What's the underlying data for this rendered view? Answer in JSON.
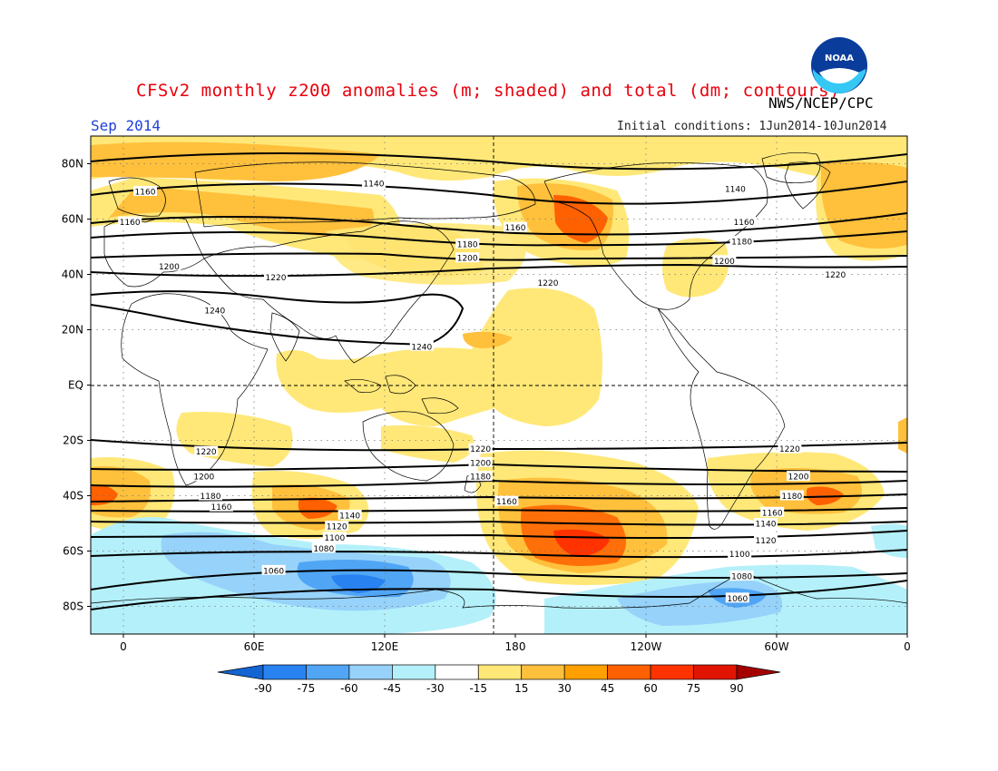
{
  "title": "CFSv2 monthly z200 anomalies (m; shaded) and total (dm; contours)",
  "agency": "NWS/NCEP/CPC",
  "logo_text": "NOAA",
  "month_label": "Sep 2014",
  "initial_conditions": "Initial conditions: 1Jun2014-10Jun2014",
  "colors": {
    "title": "#e8000b",
    "month": "#1f3fd9"
  },
  "lat_labels": [
    "80N",
    "60N",
    "40N",
    "20N",
    "EQ",
    "20S",
    "40S",
    "60S",
    "80S"
  ],
  "lat_values": [
    80,
    60,
    40,
    20,
    0,
    -20,
    -40,
    -60,
    -80
  ],
  "lon_labels": [
    "0",
    "60E",
    "120E",
    "180",
    "120W",
    "60W",
    "0"
  ],
  "lon_values": [
    0,
    60,
    120,
    180,
    240,
    300,
    360
  ],
  "colorbar": {
    "ticks": [
      "-90",
      "-75",
      "-60",
      "-45",
      "-30",
      "-15",
      "15",
      "30",
      "45",
      "60",
      "75",
      "90"
    ],
    "colors": [
      "#1464d2",
      "#2882f0",
      "#50a5f5",
      "#96d2fa",
      "#b4f0fa",
      "#ffffff",
      "#ffe878",
      "#ffc03c",
      "#ffa000",
      "#ff6000",
      "#ff3200",
      "#e11400",
      "#a50000"
    ]
  },
  "contour_labels": [
    {
      "text": "1140",
      "lon": 115,
      "lat": 73
    },
    {
      "text": "1160",
      "lon": 10,
      "lat": 70
    },
    {
      "text": "1160",
      "lon": 3,
      "lat": 59
    },
    {
      "text": "1200",
      "lon": 21,
      "lat": 43
    },
    {
      "text": "1220",
      "lon": 70,
      "lat": 39
    },
    {
      "text": "1240",
      "lon": 42,
      "lat": 27
    },
    {
      "text": "1240",
      "lon": 137,
      "lat": 14
    },
    {
      "text": "1180",
      "lon": 158,
      "lat": 51
    },
    {
      "text": "1200",
      "lon": 158,
      "lat": 46
    },
    {
      "text": "1160",
      "lon": 180,
      "lat": 57
    },
    {
      "text": "1220",
      "lon": 195,
      "lat": 37
    },
    {
      "text": "1140",
      "lon": 281,
      "lat": 71
    },
    {
      "text": "1160",
      "lon": 285,
      "lat": 59
    },
    {
      "text": "1180",
      "lon": 284,
      "lat": 52
    },
    {
      "text": "1200",
      "lon": 276,
      "lat": 45
    },
    {
      "text": "1220",
      "lon": 327,
      "lat": 40
    },
    {
      "text": "1220",
      "lon": 38,
      "lat": -24
    },
    {
      "text": "1200",
      "lon": 37,
      "lat": -33
    },
    {
      "text": "1180",
      "lon": 40,
      "lat": -40
    },
    {
      "text": "1160",
      "lon": 45,
      "lat": -44
    },
    {
      "text": "1140",
      "lon": 104,
      "lat": -47
    },
    {
      "text": "1120",
      "lon": 98,
      "lat": -51
    },
    {
      "text": "1100",
      "lon": 97,
      "lat": -55
    },
    {
      "text": "1080",
      "lon": 92,
      "lat": -59
    },
    {
      "text": "1060",
      "lon": 69,
      "lat": -67
    },
    {
      "text": "1220",
      "lon": 164,
      "lat": -23
    },
    {
      "text": "1200",
      "lon": 164,
      "lat": -28
    },
    {
      "text": "1180",
      "lon": 164,
      "lat": -33
    },
    {
      "text": "1160",
      "lon": 176,
      "lat": -42
    },
    {
      "text": "1220",
      "lon": 306,
      "lat": -23
    },
    {
      "text": "1200",
      "lon": 310,
      "lat": -33
    },
    {
      "text": "1180",
      "lon": 307,
      "lat": -40
    },
    {
      "text": "1160",
      "lon": 298,
      "lat": -46
    },
    {
      "text": "1140",
      "lon": 295,
      "lat": -50
    },
    {
      "text": "1120",
      "lon": 295,
      "lat": -56
    },
    {
      "text": "1100",
      "lon": 283,
      "lat": -61
    },
    {
      "text": "1080",
      "lon": 284,
      "lat": -69
    },
    {
      "text": "1060",
      "lon": 282,
      "lat": -77
    }
  ]
}
